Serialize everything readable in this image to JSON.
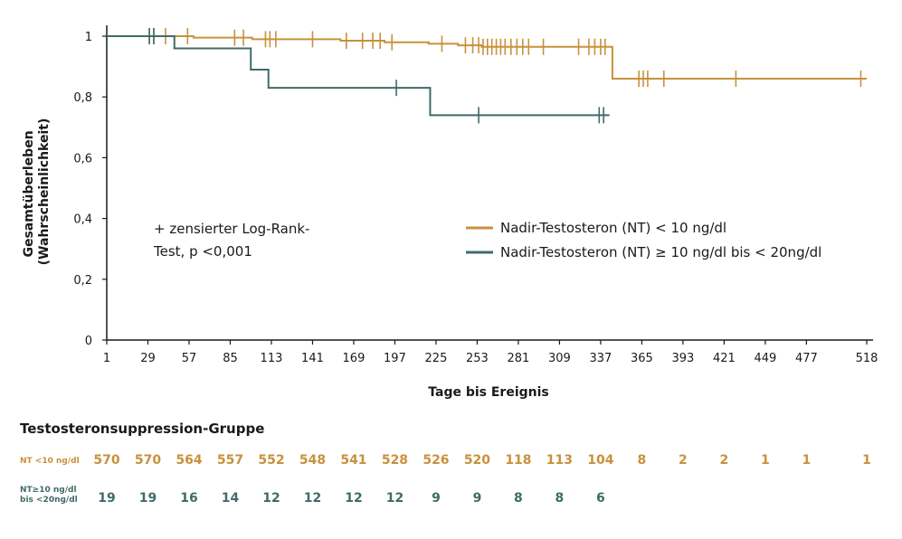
{
  "colors": {
    "nt_low": "#c8913c",
    "nt_high": "#3f6b68",
    "axis": "#1a1a1a"
  },
  "chart_data": {
    "type": "line",
    "step": true,
    "ylabel_line1": "Gesamtüberleben",
    "ylabel_line2": "(Wahrscheinlichkeit)",
    "xlabel": "Tage bis Ereignis",
    "xlim": [
      1,
      518
    ],
    "ylim": [
      0,
      1
    ],
    "x_ticks": [
      1,
      29,
      57,
      85,
      113,
      141,
      169,
      197,
      225,
      253,
      281,
      309,
      337,
      365,
      393,
      421,
      449,
      477,
      518
    ],
    "y_ticks": [
      {
        "value": 0,
        "label": "0"
      },
      {
        "value": 0.2,
        "label": "0,2"
      },
      {
        "value": 0.4,
        "label": "0,4"
      },
      {
        "value": 0.6,
        "label": "0,6"
      },
      {
        "value": 0.8,
        "label": "0,8"
      },
      {
        "value": 1,
        "label": "1"
      }
    ],
    "annotation_line1": "+ zensierter Log-Rank-",
    "annotation_line2": "Test, p <0,001",
    "legend_position": "center-right",
    "series": [
      {
        "name": "Nadir-Testosteron (NT) < 10 ng/dl",
        "color_key": "nt_low",
        "steps": [
          [
            1,
            1
          ],
          [
            60,
            0.995
          ],
          [
            100,
            0.99
          ],
          [
            160,
            0.985
          ],
          [
            190,
            0.98
          ],
          [
            220,
            0.975
          ],
          [
            240,
            0.97
          ],
          [
            256,
            0.965
          ],
          [
            345,
            0.86
          ],
          [
            518,
            0.86
          ]
        ],
        "censored": [
          {
            "x": 30,
            "y": 1
          },
          {
            "x": 33,
            "y": 1
          },
          {
            "x": 41,
            "y": 1
          },
          {
            "x": 56,
            "y": 1
          },
          {
            "x": 88,
            "y": 0.995
          },
          {
            "x": 94,
            "y": 0.995
          },
          {
            "x": 109,
            "y": 0.99
          },
          {
            "x": 112,
            "y": 0.99
          },
          {
            "x": 116,
            "y": 0.99
          },
          {
            "x": 141,
            "y": 0.99
          },
          {
            "x": 164,
            "y": 0.985
          },
          {
            "x": 175,
            "y": 0.985
          },
          {
            "x": 182,
            "y": 0.985
          },
          {
            "x": 187,
            "y": 0.985
          },
          {
            "x": 195,
            "y": 0.98
          },
          {
            "x": 229,
            "y": 0.975
          },
          {
            "x": 245,
            "y": 0.97
          },
          {
            "x": 250,
            "y": 0.97
          },
          {
            "x": 254,
            "y": 0.97
          },
          {
            "x": 257,
            "y": 0.965
          },
          {
            "x": 260,
            "y": 0.965
          },
          {
            "x": 263,
            "y": 0.965
          },
          {
            "x": 266,
            "y": 0.965
          },
          {
            "x": 269,
            "y": 0.965
          },
          {
            "x": 272,
            "y": 0.965
          },
          {
            "x": 276,
            "y": 0.965
          },
          {
            "x": 280,
            "y": 0.965
          },
          {
            "x": 284,
            "y": 0.965
          },
          {
            "x": 288,
            "y": 0.965
          },
          {
            "x": 298,
            "y": 0.965
          },
          {
            "x": 322,
            "y": 0.965
          },
          {
            "x": 329,
            "y": 0.965
          },
          {
            "x": 333,
            "y": 0.965
          },
          {
            "x": 337,
            "y": 0.965
          },
          {
            "x": 340,
            "y": 0.965
          },
          {
            "x": 363,
            "y": 0.86
          },
          {
            "x": 366,
            "y": 0.86
          },
          {
            "x": 369,
            "y": 0.86
          },
          {
            "x": 380,
            "y": 0.86
          },
          {
            "x": 429,
            "y": 0.86
          },
          {
            "x": 514,
            "y": 0.86
          }
        ]
      },
      {
        "name": "Nadir-Testosteron (NT) ≥ 10 ng/dl bis < 20ng/dl",
        "color_key": "nt_high",
        "steps": [
          [
            1,
            1
          ],
          [
            47,
            0.96
          ],
          [
            99,
            0.89
          ],
          [
            111,
            0.83
          ],
          [
            221,
            0.74
          ],
          [
            343,
            0.74
          ]
        ],
        "censored": [
          {
            "x": 30,
            "y": 1
          },
          {
            "x": 33,
            "y": 1
          },
          {
            "x": 198,
            "y": 0.83
          },
          {
            "x": 254,
            "y": 0.74
          },
          {
            "x": 336,
            "y": 0.74
          },
          {
            "x": 339,
            "y": 0.74
          }
        ]
      }
    ]
  },
  "risk_table": {
    "title": "Testosteronsuppression-Gruppe",
    "rows": [
      {
        "label_line1": "NT <10 ng/dl",
        "label_line2": "",
        "color_key": "nt_low",
        "values": [
          "570",
          "570",
          "564",
          "557",
          "552",
          "548",
          "541",
          "528",
          "526",
          "520",
          "118",
          "113",
          "104",
          "8",
          "2",
          "2",
          "1",
          "1",
          "1"
        ]
      },
      {
        "label_line1": "NT≥10 ng/dl",
        "label_line2": "bis <20ng/dl",
        "color_key": "nt_high",
        "values": [
          "19",
          "19",
          "16",
          "14",
          "12",
          "12",
          "12",
          "12",
          "9",
          "9",
          "8",
          "8",
          "6"
        ]
      }
    ]
  }
}
